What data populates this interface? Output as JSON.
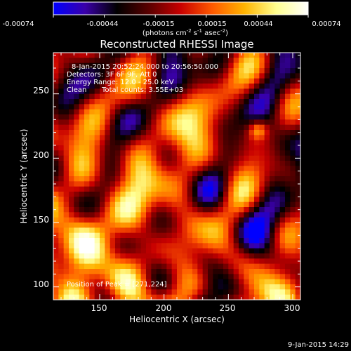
{
  "colorbar": {
    "tick_labels": [
      "-0.00074",
      "-0.00044",
      "-0.00015",
      "0.00015",
      "0.00044",
      "0.00074"
    ],
    "unit_main": "(photons cm",
    "unit_sup1": "-2",
    "unit_mid": " s",
    "unit_sup2": "-1",
    "unit_end1": " asec",
    "unit_sup3": "-2",
    "unit_end2": ")",
    "colormap_stops": [
      "#0000ff",
      "#3a00a8",
      "#000000",
      "#5a0000",
      "#c80000",
      "#ff5a00",
      "#ffb400",
      "#ffff90",
      "#ffffff"
    ]
  },
  "chart_data": {
    "type": "heatmap",
    "title": "Reconstructed RHESSI Image",
    "xlabel": "Heliocentric X (arcsec)",
    "ylabel": "Heliocentric Y (arcsec)",
    "xlim": [
      114,
      306
    ],
    "ylim": [
      90,
      282
    ],
    "x_ticks": [
      150,
      200,
      250,
      300
    ],
    "y_ticks": [
      100,
      150,
      200,
      250
    ],
    "value_range": [
      -0.00074,
      0.00074
    ],
    "peak": {
      "x": 271,
      "y": 224
    },
    "grid": false,
    "annotations": {
      "time_range": "8-Jan-2015 20:52:24.000 to 20:56:50.000",
      "detectors": "Detectors: 3F 6F 9F, Att 0",
      "energy_range": "Energy Range: 12.0 - 25.0 keV",
      "method": "Clean",
      "total_counts": "Total counts: 3.55E+03",
      "peak_position": "Position of Peak = [271,224]"
    }
  },
  "footer": {
    "timestamp": "9-Jan-2015 14:29"
  }
}
